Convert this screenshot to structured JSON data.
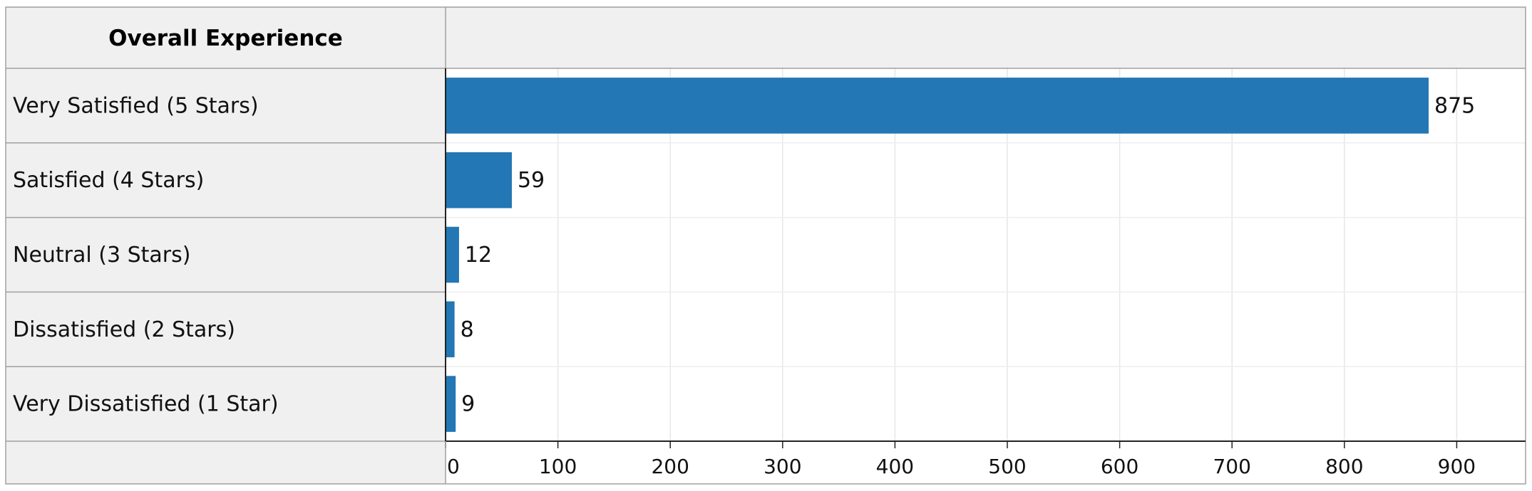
{
  "chart_data": {
    "type": "bar",
    "orientation": "horizontal",
    "header": "Overall Experience",
    "categories": [
      "Very Satisfied (5 Stars)",
      "Satisfied (4 Stars)",
      "Neutral (3 Stars)",
      "Dissatisfied (2 Stars)",
      "Very Dissatisfied (1 Star)"
    ],
    "values": [
      875,
      59,
      12,
      8,
      9
    ],
    "value_labels": [
      "875",
      "59",
      "12",
      "8",
      "9"
    ],
    "xlim": [
      0,
      960
    ],
    "x_ticks": [
      0,
      100,
      200,
      300,
      400,
      500,
      600,
      700,
      800,
      900
    ],
    "x_tick_labels": [
      "0",
      "100",
      "200",
      "300",
      "400",
      "500",
      "600",
      "700",
      "800",
      "900"
    ],
    "grid": true,
    "bar_color": "#2277b4"
  }
}
